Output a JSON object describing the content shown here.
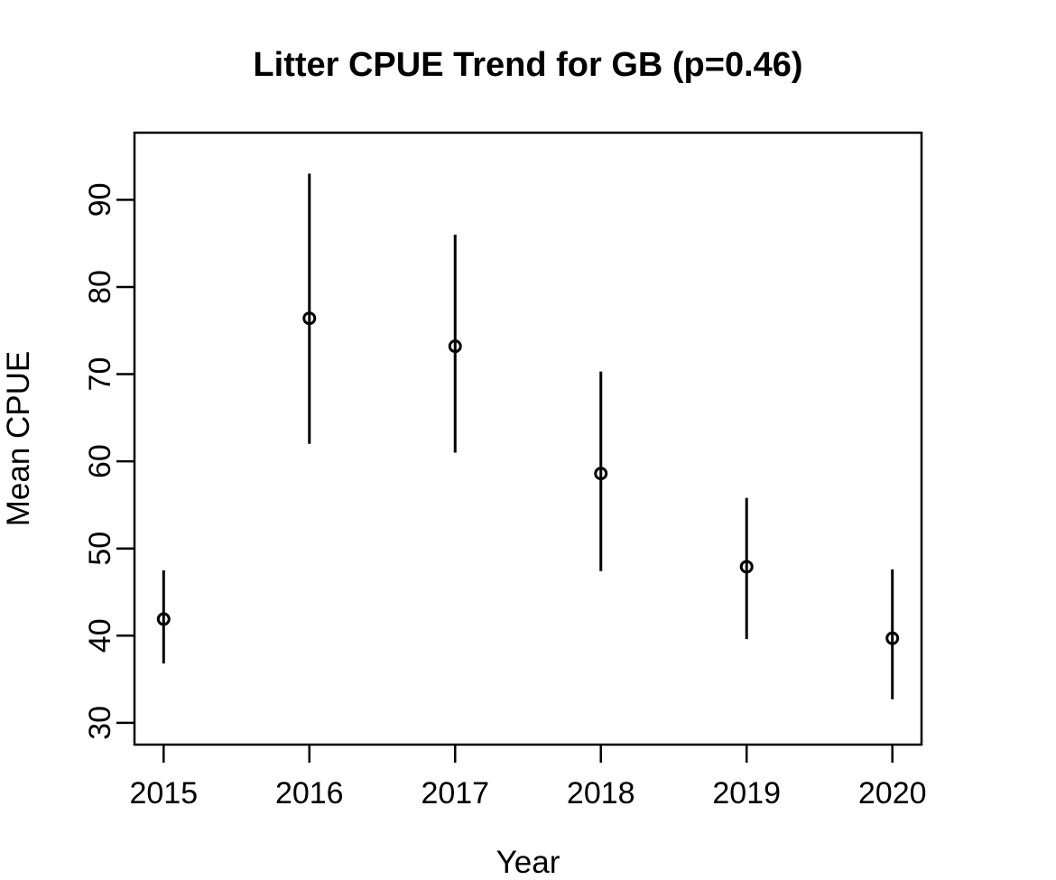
{
  "figure": {
    "title": "Litter CPUE Trend for GB (p=0.46)",
    "xlabel": "Year",
    "ylabel": "Mean CPUE",
    "p_value_shown_in_title": "0.46",
    "region_shown_in_title": "GB"
  },
  "chart_data": {
    "type": "scatter",
    "subtype": "points-with-error-bars",
    "title": "Litter CPUE Trend for GB (p=0.46)",
    "xlabel": "Year",
    "ylabel": "Mean CPUE",
    "x": [
      2015,
      2016,
      2017,
      2018,
      2019,
      2020
    ],
    "series": [
      {
        "name": "mean_cpue",
        "values": [
          41.9,
          76.4,
          73.2,
          58.6,
          47.9,
          39.7
        ]
      },
      {
        "name": "ci_lower",
        "values": [
          36.8,
          62.0,
          61.0,
          47.4,
          39.6,
          32.7
        ]
      },
      {
        "name": "ci_upper",
        "values": [
          47.5,
          93.0,
          86.0,
          70.3,
          55.8,
          47.6
        ]
      }
    ],
    "x_ticks": [
      2015,
      2016,
      2017,
      2018,
      2019,
      2020
    ],
    "y_ticks": [
      30,
      40,
      50,
      60,
      70,
      80,
      90
    ],
    "xlim": [
      2014.8,
      2020.2
    ],
    "ylim": [
      27.5,
      97.7
    ],
    "grid": false,
    "legend": false,
    "marker": "open-circle",
    "error_bar_caps": false,
    "colors": {
      "foreground": "#000000",
      "background": "#ffffff"
    }
  }
}
